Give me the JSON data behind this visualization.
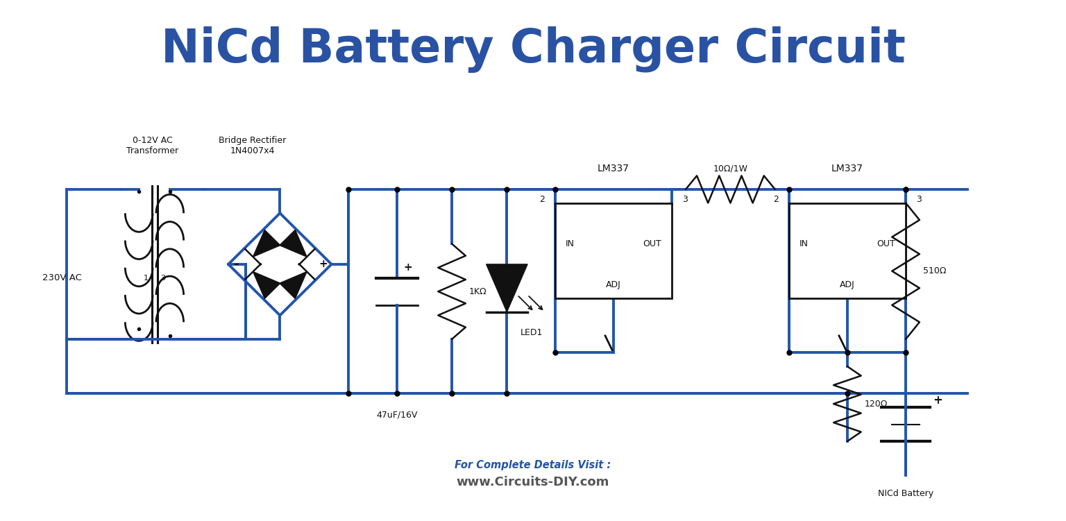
{
  "title": "NiCd Battery Charger Circuit",
  "title_color": "#2952a3",
  "title_fontsize": 48,
  "line_color": "#2255aa",
  "line_width": 2.8,
  "component_color": "#111111",
  "footer_text1": "For Complete Details Visit :",
  "footer_text2": "www.Circuits-DIY.com",
  "footer_color1": "#2255aa",
  "footer_color2": "#555555",
  "bg_color": "#ffffff"
}
